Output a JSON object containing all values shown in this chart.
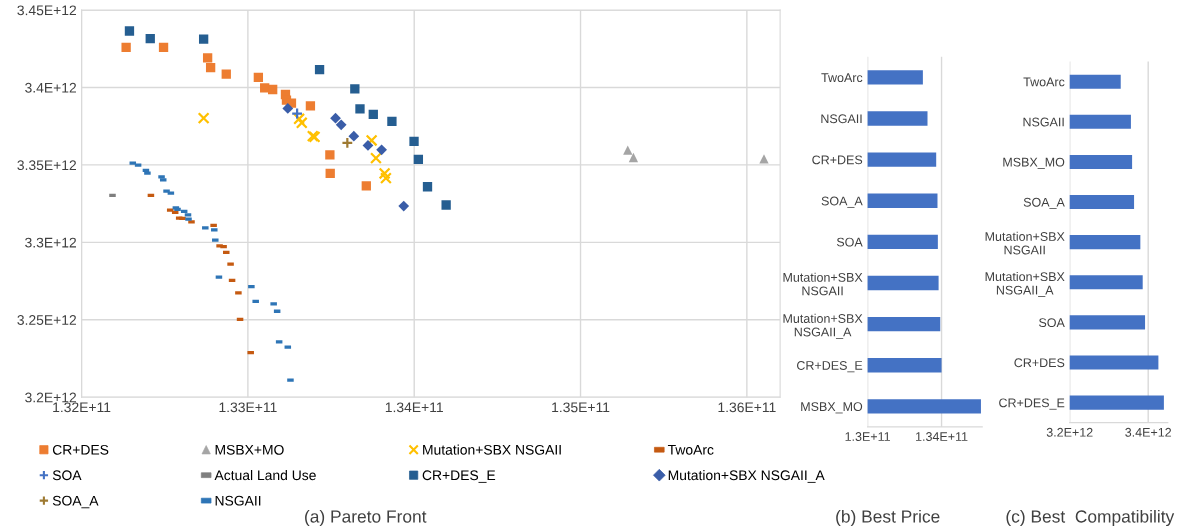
{
  "chart_data": [
    {
      "type": "scatter",
      "title": "(a) Pareto Front",
      "xlim": [
        132000000000.0,
        136200000000.0
      ],
      "ylim": [
        3200000000000.0,
        3450000000000.0
      ],
      "xticks": [
        {
          "value": 132000000000.0,
          "label": "1.32E+11"
        },
        {
          "value": 133000000000.0,
          "label": "1.33E+11"
        },
        {
          "value": 134000000000.0,
          "label": "1.34E+11"
        },
        {
          "value": 135000000000.0,
          "label": "1.35E+11"
        },
        {
          "value": 136000000000.0,
          "label": "1.36E+11"
        }
      ],
      "yticks": [
        {
          "value": 3200000000000.0,
          "label": "3.2E+12"
        },
        {
          "value": 3250000000000.0,
          "label": "3.25E+12"
        },
        {
          "value": 3300000000000.0,
          "label": "3.3E+12"
        },
        {
          "value": 3350000000000.0,
          "label": "3.35E+12"
        },
        {
          "value": 3400000000000.0,
          "label": "3.4E+12"
        },
        {
          "value": 3450000000000.0,
          "label": "3.45E+12"
        }
      ],
      "grid": true,
      "legend": "bottom",
      "series": [
        {
          "name": "CR+DES",
          "color": "#ed7d31",
          "marker": "square",
          "x": [
            132268000000.0,
            132493000000.0,
            132758000000.0,
            132776000000.0,
            132870000000.0,
            133063000000.0,
            133101000000.0,
            133149000000.0,
            133226000000.0,
            133232000000.0,
            133262000000.0,
            133376000000.0,
            133493000000.0,
            133495000000.0,
            133712000000.0
          ],
          "values": [
            3425900000000.0,
            3425900000000.0,
            3419100000000.0,
            3412900000000.0,
            3408600000000.0,
            3406500000000.0,
            3399800000000.0,
            3398700000000.0,
            3395500000000.0,
            3391800000000.0,
            3389900000000.0,
            3388100000000.0,
            3356500000000.0,
            3344500000000.0,
            3336500000000.0
          ]
        },
        {
          "name": "MSBX+MO",
          "color": "#a5a5a5",
          "marker": "triangle",
          "x": [
            135284000000.0,
            135318000000.0,
            136103000000.0
          ],
          "values": [
            3359600000000.0,
            3354800000000.0,
            3353900000000.0
          ]
        },
        {
          "name": "Mutation+SBX NSGAII",
          "color": "#ffc000",
          "marker": "cross",
          "x": [
            132734000000.0,
            133308000000.0,
            133324000000.0,
            133390000000.0,
            133401000000.0,
            133744000000.0,
            133770000000.0,
            133822000000.0,
            133830000000.0
          ],
          "values": [
            3380200000000.0,
            3379800000000.0,
            3377200000000.0,
            3368600000000.0,
            3368100000000.0,
            3365800000000.0,
            3354400000000.0,
            3344500000000.0,
            3341500000000.0
          ]
        },
        {
          "name": "TwoArc",
          "color": "#c55a11",
          "x": [
            132417000000.0,
            132533000000.0,
            132563000000.0,
            132587000000.0,
            132607000000.0,
            132661000000.0,
            132794000000.0,
            132830000000.0,
            132854000000.0,
            132870000000.0,
            132896000000.0,
            132905000000.0,
            132943000000.0,
            132953000000.0,
            133017000000.0
          ],
          "values": [
            3330300000000.0,
            3320800000000.0,
            3319400000000.0,
            3315700000000.0,
            3315500000000.0,
            3313300000000.0,
            3311000000000.0,
            3297800000000.0,
            3297200000000.0,
            3293600000000.0,
            3286000000000.0,
            3275500000000.0,
            3267300000000.0,
            3250300000000.0,
            3228800000000.0
          ]
        },
        {
          "name": "SOA",
          "color": "#4472c4",
          "marker": "plus",
          "x": [
            133296000000.0
          ],
          "values": [
            3383200000000.0
          ]
        },
        {
          "name": "Actual Land Use",
          "color": "#7f7f7f",
          "x": [
            132186000000.0
          ],
          "values": [
            3330300000000.0
          ]
        },
        {
          "name": "CR+DES_E",
          "color": "#255e91",
          "marker": "square",
          "x": [
            132288000000.0,
            132413000000.0,
            132734000000.0,
            133431000000.0,
            133643000000.0,
            133674000000.0,
            133754000000.0,
            133866000000.0,
            133999000000.0,
            134025000000.0,
            134080000000.0,
            134192000000.0
          ],
          "values": [
            3436500000000.0,
            3431600000000.0,
            3431200000000.0,
            3411600000000.0,
            3399100000000.0,
            3386200000000.0,
            3382600000000.0,
            3378100000000.0,
            3365200000000.0,
            3353600000000.0,
            3335900000000.0,
            3324100000000.0
          ]
        },
        {
          "name": "Mutation+SBX NSGAII_A",
          "color": "#3a5da8",
          "marker": "diamond",
          "x": [
            133240000000.0,
            133527000000.0,
            133561000000.0,
            133637000000.0,
            133722000000.0,
            133804000000.0,
            133937000000.0
          ],
          "values": [
            3386500000000.0,
            3380200000000.0,
            3375900000000.0,
            3368600000000.0,
            3362600000000.0,
            3359800000000.0,
            3323400000000.0
          ]
        },
        {
          "name": "SOA_A",
          "color": "#9e7a32",
          "marker": "plus",
          "x": [
            133598000000.0
          ],
          "values": [
            3364300000000.0
          ]
        },
        {
          "name": "NSGAII",
          "color": "#2e75b6",
          "x": [
            132308000000.0,
            132340000000.0,
            132387000000.0,
            132396000000.0,
            132481000000.0,
            132491000000.0,
            132511000000.0,
            132537000000.0,
            132567000000.0,
            132577000000.0,
            132617000000.0,
            132640000000.0,
            132643000000.0,
            132744000000.0,
            132798000000.0,
            132804000000.0,
            132826000000.0,
            133021000000.0,
            133047000000.0,
            133155000000.0,
            133176000000.0,
            133188000000.0,
            133240000000.0,
            133256000000.0
          ],
          "values": [
            3351200000000.0,
            3349900000000.0,
            3346500000000.0,
            3344700000000.0,
            3342300000000.0,
            3340400000000.0,
            3333100000000.0,
            3331800000000.0,
            3322300000000.0,
            3321300000000.0,
            3320000000000.0,
            3317800000000.0,
            3315000000000.0,
            3309400000000.0,
            3308100000000.0,
            3301500000000.0,
            3277600000000.0,
            3271400000000.0,
            3261900000000.0,
            3260200000000.0,
            3255500000000.0,
            3235700000000.0,
            3232400000000.0,
            3211000000000.0
          ]
        }
      ]
    },
    {
      "type": "bar",
      "orientation": "horizontal",
      "title": "(b) Best Price",
      "color": "#4472c4",
      "grid": "x",
      "categories": [
        "TwoArc",
        "NSGAII",
        "CR+DES",
        "SOA_A",
        "SOA",
        "Mutation+SBX\nNSGAII",
        "Mutation+SBX\nNSGAII_A",
        "CR+DES_E",
        "MSBX_MO"
      ],
      "values": [
        132990000000.0,
        133240000000.0,
        133710000000.0,
        133780000000.0,
        133800000000.0,
        133840000000.0,
        133930000000.0,
        134000000000.0,
        136130000000.0
      ],
      "xlim": [
        130000000000.0,
        136200000000.0
      ],
      "xticks": [
        {
          "value": 130000000000.0,
          "label": "1.3E+11"
        },
        {
          "value": 134000000000.0,
          "label": "1.34E+11"
        }
      ]
    },
    {
      "type": "bar",
      "orientation": "horizontal",
      "title": "(c) Best  Compatibility",
      "color": "#4472c4",
      "grid": "x",
      "categories": [
        "TwoArc",
        "NSGAII",
        "MSBX_MO",
        "SOA_A",
        "Mutation+SBX\nNSGAII",
        "Mutation+SBX\nNSGAII_A",
        "SOA",
        "CR+DES",
        "CR+DES_E"
      ],
      "values": [
        3330000000000.0,
        3356000000000.0,
        3359000000000.0,
        3364000000000.0,
        3380000000000.0,
        3386000000000.0,
        3392000000000.0,
        3426000000000.0,
        3440000000000.0
      ],
      "xlim": [
        3200000000000.0,
        3450000000000.0
      ],
      "xticks": [
        {
          "value": 3200000000000.0,
          "label": "3.2E+12"
        },
        {
          "value": 3400000000000.0,
          "label": "3.4E+12"
        }
      ]
    }
  ]
}
